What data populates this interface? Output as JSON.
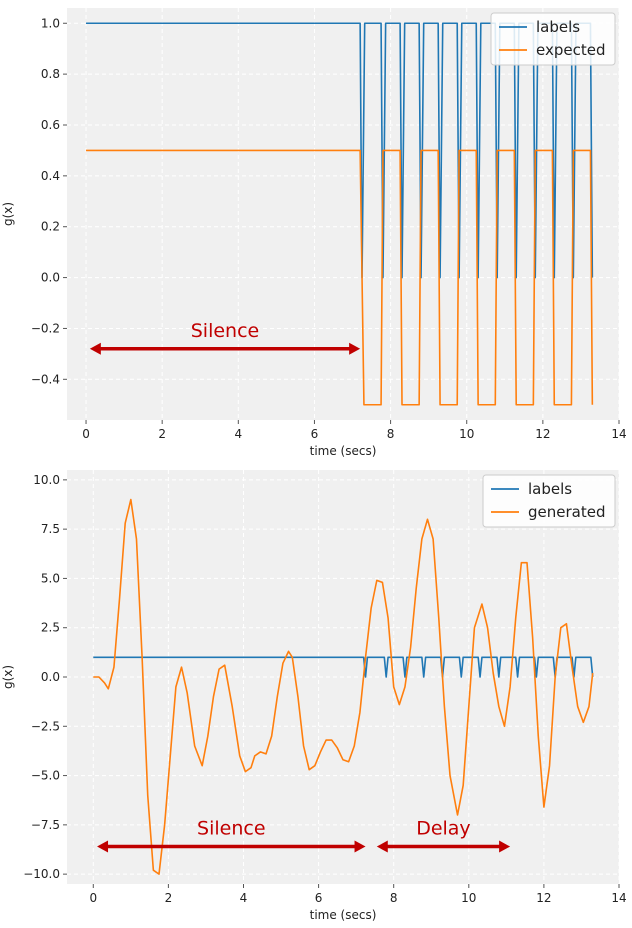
{
  "colors": {
    "labels": "#1f77b4",
    "expected": "#ff7f0e",
    "generated": "#ff7f0e",
    "annotation": "#c00000",
    "plot_bg": "#f0f0f0",
    "grid": "#ffffff"
  },
  "chart_data": [
    {
      "type": "line",
      "xlabel": "time (secs)",
      "ylabel": "g(x)",
      "xlim": [
        -0.5,
        14
      ],
      "ylim": [
        -0.56,
        1.06
      ],
      "xticks": [
        0,
        2,
        4,
        6,
        8,
        10,
        12,
        14
      ],
      "yticks": [
        -0.4,
        -0.2,
        0.0,
        0.2,
        0.4,
        0.6,
        0.8,
        1.0
      ],
      "xtick_labels": [
        "0",
        "2",
        "4",
        "6",
        "8",
        "10",
        "12",
        "14"
      ],
      "ytick_labels": [
        "−0.4",
        "−0.2",
        "0.0",
        "0.2",
        "0.4",
        "0.6",
        "0.8",
        "1.0"
      ],
      "grid": true,
      "legend_position": "top-right",
      "series": [
        {
          "name": "labels",
          "x": [
            0,
            7.2,
            7.25,
            7.32,
            7.75,
            7.8,
            7.87,
            8.25,
            8.3,
            8.37,
            8.75,
            8.8,
            8.87,
            9.25,
            9.3,
            9.37,
            9.75,
            9.8,
            9.87,
            10.25,
            10.3,
            10.37,
            10.75,
            10.8,
            10.87,
            11.25,
            11.3,
            11.37,
            11.75,
            11.8,
            11.87,
            12.25,
            12.3,
            12.37,
            12.75,
            12.8,
            12.87,
            13.25,
            13.3
          ],
          "y": [
            1,
            1,
            0,
            1,
            1,
            0,
            1,
            1,
            0,
            1,
            1,
            0,
            1,
            1,
            0,
            1,
            1,
            0,
            1,
            1,
            0,
            1,
            1,
            0,
            1,
            1,
            0,
            1,
            1,
            0,
            1,
            1,
            0,
            1,
            1,
            0,
            1,
            1,
            0
          ]
        },
        {
          "name": "expected",
          "x": [
            0,
            7.2,
            7.25,
            7.3,
            7.75,
            7.8,
            8.25,
            8.3,
            8.75,
            8.8,
            9.25,
            9.3,
            9.75,
            9.8,
            10.25,
            10.3,
            10.75,
            10.8,
            11.25,
            11.3,
            11.75,
            11.8,
            12.25,
            12.3,
            12.75,
            12.8,
            13.25,
            13.3
          ],
          "y": [
            0.5,
            0.5,
            0,
            -0.5,
            -0.5,
            0.5,
            0.5,
            -0.5,
            -0.5,
            0.5,
            0.5,
            -0.5,
            -0.5,
            0.5,
            0.5,
            -0.5,
            -0.5,
            0.5,
            0.5,
            -0.5,
            -0.5,
            0.5,
            0.5,
            -0.5,
            -0.5,
            0.5,
            0.5,
            -0.5
          ]
        }
      ],
      "annotations": [
        {
          "text": "Silence",
          "x_start": 0.1,
          "x_end": 7.2,
          "y": -0.28
        }
      ]
    },
    {
      "type": "line",
      "xlabel": "time (secs)",
      "ylabel": "g(x)",
      "xlim": [
        -0.7,
        14
      ],
      "ylim": [
        -10.5,
        10.5
      ],
      "xticks": [
        0,
        2,
        4,
        6,
        8,
        10,
        12,
        14
      ],
      "yticks": [
        -10,
        -7.5,
        -5,
        -2.5,
        0,
        2.5,
        5,
        7.5,
        10
      ],
      "xtick_labels": [
        "0",
        "2",
        "4",
        "6",
        "8",
        "10",
        "12",
        "14"
      ],
      "ytick_labels": [
        "−10.0",
        "−7.5",
        "−5.0",
        "−2.5",
        "0.0",
        "2.5",
        "5.0",
        "7.5",
        "10.0"
      ],
      "grid": true,
      "legend_position": "top-right",
      "series": [
        {
          "name": "labels",
          "x": [
            0,
            7.2,
            7.25,
            7.3,
            7.75,
            7.8,
            7.85,
            8.25,
            8.3,
            8.35,
            8.75,
            8.8,
            8.85,
            9.25,
            9.3,
            9.35,
            9.75,
            9.8,
            9.85,
            10.25,
            10.3,
            10.35,
            10.75,
            10.8,
            10.85,
            11.25,
            11.3,
            11.35,
            11.75,
            11.8,
            11.85,
            12.25,
            12.3,
            12.35,
            12.75,
            12.8,
            12.85,
            13.25,
            13.3
          ],
          "y": [
            1,
            1,
            0,
            1,
            1,
            0,
            1,
            1,
            0,
            1,
            1,
            0,
            1,
            1,
            0,
            1,
            1,
            0,
            1,
            1,
            0,
            1,
            1,
            0,
            1,
            1,
            0,
            1,
            1,
            0,
            1,
            1,
            0,
            1,
            1,
            0,
            1,
            1,
            0
          ]
        },
        {
          "name": "generated",
          "x": [
            0,
            0.15,
            0.3,
            0.4,
            0.55,
            0.7,
            0.85,
            1.0,
            1.15,
            1.3,
            1.45,
            1.6,
            1.75,
            1.9,
            2.05,
            2.2,
            2.35,
            2.5,
            2.7,
            2.9,
            3.05,
            3.2,
            3.35,
            3.5,
            3.7,
            3.9,
            4.05,
            4.2,
            4.3,
            4.45,
            4.6,
            4.75,
            4.9,
            5.05,
            5.2,
            5.3,
            5.45,
            5.6,
            5.75,
            5.9,
            6.05,
            6.2,
            6.35,
            6.5,
            6.65,
            6.8,
            6.95,
            7.1,
            7.25,
            7.4,
            7.55,
            7.7,
            7.85,
            8.0,
            8.15,
            8.3,
            8.45,
            8.6,
            8.75,
            8.9,
            9.05,
            9.2,
            9.35,
            9.5,
            9.7,
            9.85,
            10.0,
            10.15,
            10.35,
            10.5,
            10.65,
            10.8,
            10.95,
            11.1,
            11.25,
            11.4,
            11.55,
            11.7,
            11.85,
            12.0,
            12.15,
            12.3,
            12.45,
            12.6,
            12.75,
            12.9,
            13.05,
            13.2,
            13.3
          ],
          "y": [
            0,
            0,
            -0.3,
            -0.6,
            0.5,
            4.0,
            7.8,
            9.0,
            7.0,
            1.0,
            -6.0,
            -9.8,
            -10.0,
            -7.5,
            -4.0,
            -0.5,
            0.5,
            -0.8,
            -3.5,
            -4.5,
            -3.0,
            -1.0,
            0.4,
            0.6,
            -1.5,
            -4.0,
            -4.8,
            -4.6,
            -4.0,
            -3.8,
            -3.9,
            -3.0,
            -1.0,
            0.7,
            1.3,
            1.0,
            -1.0,
            -3.5,
            -4.7,
            -4.5,
            -3.8,
            -3.2,
            -3.2,
            -3.6,
            -4.2,
            -4.3,
            -3.5,
            -1.8,
            1.0,
            3.5,
            4.9,
            4.8,
            3.0,
            -0.5,
            -1.4,
            -0.5,
            1.5,
            4.5,
            7.0,
            8.0,
            7.0,
            3.0,
            -1.5,
            -5.0,
            -7.0,
            -5.5,
            -1.5,
            2.5,
            3.7,
            2.5,
            0.2,
            -1.5,
            -2.5,
            -0.5,
            3.0,
            5.8,
            5.8,
            2.0,
            -3.0,
            -6.6,
            -4.5,
            0.0,
            2.5,
            2.7,
            0.5,
            -1.5,
            -2.3,
            -1.5,
            0.2
          ]
        }
      ],
      "annotations": [
        {
          "text": "Silence",
          "x_start": 0.1,
          "x_end": 7.25,
          "y": -8.6
        },
        {
          "text": "Delay",
          "x_start": 7.55,
          "x_end": 11.1,
          "y": -8.6
        }
      ]
    }
  ]
}
